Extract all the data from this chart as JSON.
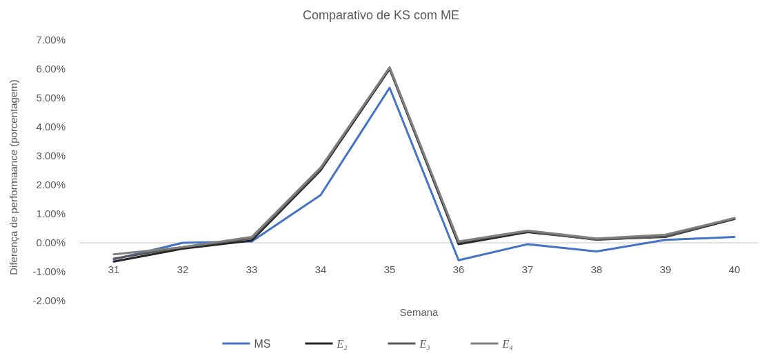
{
  "chart_data": {
    "type": "line",
    "title": "Comparativo de KS com ME",
    "xlabel": "Semana",
    "ylabel": "Diferença de performaance (porcentagem)",
    "categories": [
      "31",
      "32",
      "33",
      "34",
      "35",
      "36",
      "37",
      "38",
      "39",
      "40"
    ],
    "series": [
      {
        "name": "MS",
        "color": "#4472c4",
        "values": [
          -0.57,
          0.0,
          0.05,
          1.65,
          5.35,
          -0.6,
          -0.05,
          -0.3,
          0.1,
          0.2
        ]
      },
      {
        "name": "E₂",
        "color": "#262626",
        "values": [
          -0.65,
          -0.2,
          0.08,
          2.5,
          6.0,
          -0.05,
          0.37,
          0.12,
          0.2,
          0.82
        ]
      },
      {
        "name": "E₃",
        "color": "#595959",
        "values": [
          -0.55,
          -0.15,
          0.15,
          2.55,
          6.05,
          0.02,
          0.4,
          0.1,
          0.22,
          0.85
        ]
      },
      {
        "name": "E₄",
        "color": "#808080",
        "values": [
          -0.4,
          -0.15,
          0.2,
          2.6,
          6.05,
          0.05,
          0.42,
          0.15,
          0.28,
          0.85
        ]
      }
    ],
    "ylim": [
      -2,
      7
    ],
    "yticks": [
      {
        "value": -2,
        "label": "-2.00%"
      },
      {
        "value": -1,
        "label": "-1.00%"
      },
      {
        "value": 0,
        "label": "0.00%"
      },
      {
        "value": 1,
        "label": "1.00%"
      },
      {
        "value": 2,
        "label": "2.00%"
      },
      {
        "value": 3,
        "label": "3.00%"
      },
      {
        "value": 4,
        "label": "4.00%"
      },
      {
        "value": 5,
        "label": "5.00%"
      },
      {
        "value": 6,
        "label": "6.00%"
      },
      {
        "value": 7,
        "label": "7.00%"
      }
    ],
    "grid": false,
    "legend": "bottom",
    "marker": "none",
    "line_style": "solid"
  }
}
